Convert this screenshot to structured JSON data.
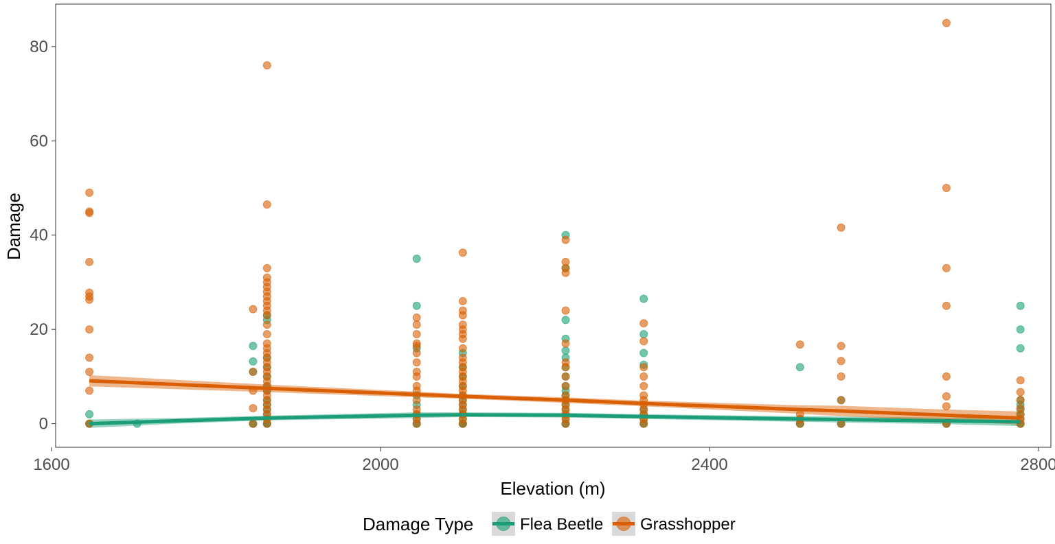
{
  "chart_data": {
    "type": "scatter",
    "title": "",
    "xlabel": "Elevation (m)",
    "ylabel": "Damage",
    "xlim": [
      1605,
      2815
    ],
    "ylim": [
      -5,
      89
    ],
    "x_ticks": [
      1600,
      2000,
      2400,
      2800
    ],
    "y_ticks": [
      0,
      20,
      40,
      60,
      80
    ],
    "grid": false,
    "legend": {
      "title": "Damage Type",
      "position": "bottom",
      "entries": [
        "Flea Beetle",
        "Grasshopper"
      ]
    },
    "colors": {
      "flea_beetle": "#1b9e77",
      "grasshopper": "#d95f02",
      "ribbon": "#999999"
    },
    "series": [
      {
        "name": "Flea Beetle",
        "color": "#1b9e77",
        "points": [
          [
            1646,
            0
          ],
          [
            1646,
            0
          ],
          [
            1646,
            2
          ],
          [
            1704,
            0
          ],
          [
            1845,
            0
          ],
          [
            1845,
            0
          ],
          [
            1845,
            11
          ],
          [
            1845,
            13.2
          ],
          [
            1845,
            16.5
          ],
          [
            1862,
            0
          ],
          [
            1862,
            0
          ],
          [
            1862,
            0
          ],
          [
            1862,
            1
          ],
          [
            1862,
            2
          ],
          [
            1862,
            3
          ],
          [
            1862,
            4
          ],
          [
            1862,
            5
          ],
          [
            1862,
            7
          ],
          [
            1862,
            8
          ],
          [
            1862,
            10
          ],
          [
            1862,
            12
          ],
          [
            1862,
            14
          ],
          [
            1862,
            22
          ],
          [
            1862,
            23
          ],
          [
            2044,
            0
          ],
          [
            2044,
            0
          ],
          [
            2044,
            1
          ],
          [
            2044,
            2
          ],
          [
            2044,
            4
          ],
          [
            2044,
            6
          ],
          [
            2044,
            16
          ],
          [
            2044,
            25
          ],
          [
            2044,
            35
          ],
          [
            2100,
            0
          ],
          [
            2100,
            0
          ],
          [
            2100,
            0
          ],
          [
            2100,
            1
          ],
          [
            2100,
            2
          ],
          [
            2100,
            3
          ],
          [
            2100,
            4
          ],
          [
            2100,
            5
          ],
          [
            2100,
            6
          ],
          [
            2100,
            8
          ],
          [
            2100,
            10
          ],
          [
            2100,
            12
          ],
          [
            2100,
            15
          ],
          [
            2225,
            0
          ],
          [
            2225,
            0
          ],
          [
            2225,
            1
          ],
          [
            2225,
            2
          ],
          [
            2225,
            3
          ],
          [
            2225,
            4
          ],
          [
            2225,
            5
          ],
          [
            2225,
            6
          ],
          [
            2225,
            7
          ],
          [
            2225,
            8
          ],
          [
            2225,
            10
          ],
          [
            2225,
            12
          ],
          [
            2225,
            14
          ],
          [
            2225,
            15.5
          ],
          [
            2225,
            18
          ],
          [
            2225,
            22
          ],
          [
            2225,
            33
          ],
          [
            2225,
            40
          ],
          [
            2320,
            0
          ],
          [
            2320,
            0
          ],
          [
            2320,
            1
          ],
          [
            2320,
            2
          ],
          [
            2320,
            3
          ],
          [
            2320,
            12.5
          ],
          [
            2320,
            15
          ],
          [
            2320,
            19
          ],
          [
            2320,
            26.5
          ],
          [
            2510,
            0
          ],
          [
            2510,
            0
          ],
          [
            2510,
            1
          ],
          [
            2510,
            12
          ],
          [
            2560,
            0
          ],
          [
            2560,
            0
          ],
          [
            2560,
            5
          ],
          [
            2688,
            0
          ],
          [
            2688,
            0
          ],
          [
            2778,
            0
          ],
          [
            2778,
            0
          ],
          [
            2778,
            1
          ],
          [
            2778,
            2
          ],
          [
            2778,
            3
          ],
          [
            2778,
            4
          ],
          [
            2778,
            5
          ],
          [
            2778,
            16
          ],
          [
            2778,
            20
          ],
          [
            2778,
            25
          ]
        ],
        "trend": [
          [
            1646,
            0
          ],
          [
            1750,
            0.6
          ],
          [
            1862,
            1.2
          ],
          [
            2044,
            1.8
          ],
          [
            2100,
            1.9
          ],
          [
            2225,
            1.8
          ],
          [
            2320,
            1.5
          ],
          [
            2510,
            1.0
          ],
          [
            2688,
            0.6
          ],
          [
            2778,
            0.4
          ]
        ],
        "ci_lower": [
          [
            1646,
            -0.9
          ],
          [
            1750,
            0
          ],
          [
            1862,
            0.7
          ],
          [
            2044,
            1.2
          ],
          [
            2100,
            1.4
          ],
          [
            2225,
            1.3
          ],
          [
            2320,
            1.0
          ],
          [
            2510,
            0.4
          ],
          [
            2688,
            -0.1
          ],
          [
            2778,
            -0.5
          ]
        ],
        "ci_upper": [
          [
            1646,
            0.9
          ],
          [
            1750,
            1.2
          ],
          [
            1862,
            1.7
          ],
          [
            2044,
            2.4
          ],
          [
            2100,
            2.4
          ],
          [
            2225,
            2.3
          ],
          [
            2320,
            2.0
          ],
          [
            2510,
            1.6
          ],
          [
            2688,
            1.3
          ],
          [
            2778,
            1.3
          ]
        ]
      },
      {
        "name": "Grasshopper",
        "color": "#d95f02",
        "points": [
          [
            1646,
            0
          ],
          [
            1646,
            7
          ],
          [
            1646,
            11
          ],
          [
            1646,
            14
          ],
          [
            1646,
            20
          ],
          [
            1646,
            26.3
          ],
          [
            1646,
            27
          ],
          [
            1646,
            27.8
          ],
          [
            1646,
            34.3
          ],
          [
            1646,
            44.7
          ],
          [
            1646,
            45
          ],
          [
            1646,
            49
          ],
          [
            1845,
            0
          ],
          [
            1845,
            3.3
          ],
          [
            1845,
            7
          ],
          [
            1845,
            11
          ],
          [
            1845,
            24.3
          ],
          [
            1862,
            0
          ],
          [
            1862,
            1
          ],
          [
            1862,
            2
          ],
          [
            1862,
            3
          ],
          [
            1862,
            4
          ],
          [
            1862,
            5
          ],
          [
            1862,
            6
          ],
          [
            1862,
            7
          ],
          [
            1862,
            8
          ],
          [
            1862,
            9
          ],
          [
            1862,
            10
          ],
          [
            1862,
            11
          ],
          [
            1862,
            12
          ],
          [
            1862,
            13
          ],
          [
            1862,
            14
          ],
          [
            1862,
            15
          ],
          [
            1862,
            16
          ],
          [
            1862,
            17
          ],
          [
            1862,
            19
          ],
          [
            1862,
            21
          ],
          [
            1862,
            23
          ],
          [
            1862,
            24
          ],
          [
            1862,
            25
          ],
          [
            1862,
            26
          ],
          [
            1862,
            27
          ],
          [
            1862,
            28
          ],
          [
            1862,
            29
          ],
          [
            1862,
            30
          ],
          [
            1862,
            31
          ],
          [
            1862,
            33
          ],
          [
            1862,
            46.5
          ],
          [
            1862,
            76
          ],
          [
            2044,
            0
          ],
          [
            2044,
            1
          ],
          [
            2044,
            2
          ],
          [
            2044,
            3
          ],
          [
            2044,
            5
          ],
          [
            2044,
            7
          ],
          [
            2044,
            8
          ],
          [
            2044,
            10
          ],
          [
            2044,
            11
          ],
          [
            2044,
            13
          ],
          [
            2044,
            15
          ],
          [
            2044,
            16.5
          ],
          [
            2044,
            17
          ],
          [
            2044,
            19
          ],
          [
            2044,
            21
          ],
          [
            2044,
            22.5
          ],
          [
            2100,
            0
          ],
          [
            2100,
            1
          ],
          [
            2100,
            2
          ],
          [
            2100,
            3
          ],
          [
            2100,
            4
          ],
          [
            2100,
            5
          ],
          [
            2100,
            6
          ],
          [
            2100,
            7
          ],
          [
            2100,
            8
          ],
          [
            2100,
            9
          ],
          [
            2100,
            10
          ],
          [
            2100,
            11
          ],
          [
            2100,
            12
          ],
          [
            2100,
            13
          ],
          [
            2100,
            14
          ],
          [
            2100,
            16
          ],
          [
            2100,
            18
          ],
          [
            2100,
            19
          ],
          [
            2100,
            20
          ],
          [
            2100,
            21
          ],
          [
            2100,
            23
          ],
          [
            2100,
            24
          ],
          [
            2100,
            26
          ],
          [
            2100,
            36.3
          ],
          [
            2225,
            0
          ],
          [
            2225,
            1
          ],
          [
            2225,
            2
          ],
          [
            2225,
            3
          ],
          [
            2225,
            4
          ],
          [
            2225,
            5
          ],
          [
            2225,
            6
          ],
          [
            2225,
            8
          ],
          [
            2225,
            10
          ],
          [
            2225,
            12
          ],
          [
            2225,
            13
          ],
          [
            2225,
            17
          ],
          [
            2225,
            24
          ],
          [
            2225,
            32
          ],
          [
            2225,
            33
          ],
          [
            2225,
            34.3
          ],
          [
            2225,
            39
          ],
          [
            2320,
            0
          ],
          [
            2320,
            1
          ],
          [
            2320,
            2
          ],
          [
            2320,
            3
          ],
          [
            2320,
            4
          ],
          [
            2320,
            5
          ],
          [
            2320,
            6
          ],
          [
            2320,
            8
          ],
          [
            2320,
            10
          ],
          [
            2320,
            12
          ],
          [
            2320,
            17.5
          ],
          [
            2320,
            21.3
          ],
          [
            2510,
            0
          ],
          [
            2510,
            1
          ],
          [
            2510,
            2
          ],
          [
            2510,
            16.8
          ],
          [
            2560,
            0
          ],
          [
            2560,
            5
          ],
          [
            2560,
            10
          ],
          [
            2560,
            13.3
          ],
          [
            2560,
            16.5
          ],
          [
            2560,
            41.6
          ],
          [
            2688,
            0
          ],
          [
            2688,
            3.7
          ],
          [
            2688,
            5.8
          ],
          [
            2688,
            10
          ],
          [
            2688,
            25
          ],
          [
            2688,
            33
          ],
          [
            2688,
            50
          ],
          [
            2688,
            85
          ],
          [
            2778,
            0
          ],
          [
            2778,
            1
          ],
          [
            2778,
            2
          ],
          [
            2778,
            3.3
          ],
          [
            2778,
            5
          ],
          [
            2778,
            6.7
          ],
          [
            2778,
            9.2
          ]
        ],
        "trend": [
          [
            1646,
            9.1
          ],
          [
            1862,
            7.5
          ],
          [
            2044,
            6.2
          ],
          [
            2100,
            5.8
          ],
          [
            2225,
            5.0
          ],
          [
            2320,
            4.3
          ],
          [
            2510,
            3.0
          ],
          [
            2560,
            2.7
          ],
          [
            2688,
            1.8
          ],
          [
            2778,
            1.2
          ]
        ],
        "ci_lower": [
          [
            1646,
            7.9
          ],
          [
            1862,
            6.7
          ],
          [
            2044,
            5.6
          ],
          [
            2100,
            5.3
          ],
          [
            2225,
            4.4
          ],
          [
            2320,
            3.7
          ],
          [
            2510,
            2.1
          ],
          [
            2560,
            1.6
          ],
          [
            2688,
            0.6
          ],
          [
            2778,
            -0.2
          ]
        ],
        "ci_upper": [
          [
            1646,
            10.3
          ],
          [
            1862,
            8.3
          ],
          [
            2044,
            6.8
          ],
          [
            2100,
            6.3
          ],
          [
            2225,
            5.6
          ],
          [
            2320,
            4.9
          ],
          [
            2510,
            3.9
          ],
          [
            2560,
            3.8
          ],
          [
            2688,
            3.0
          ],
          [
            2778,
            2.6
          ]
        ]
      }
    ]
  }
}
